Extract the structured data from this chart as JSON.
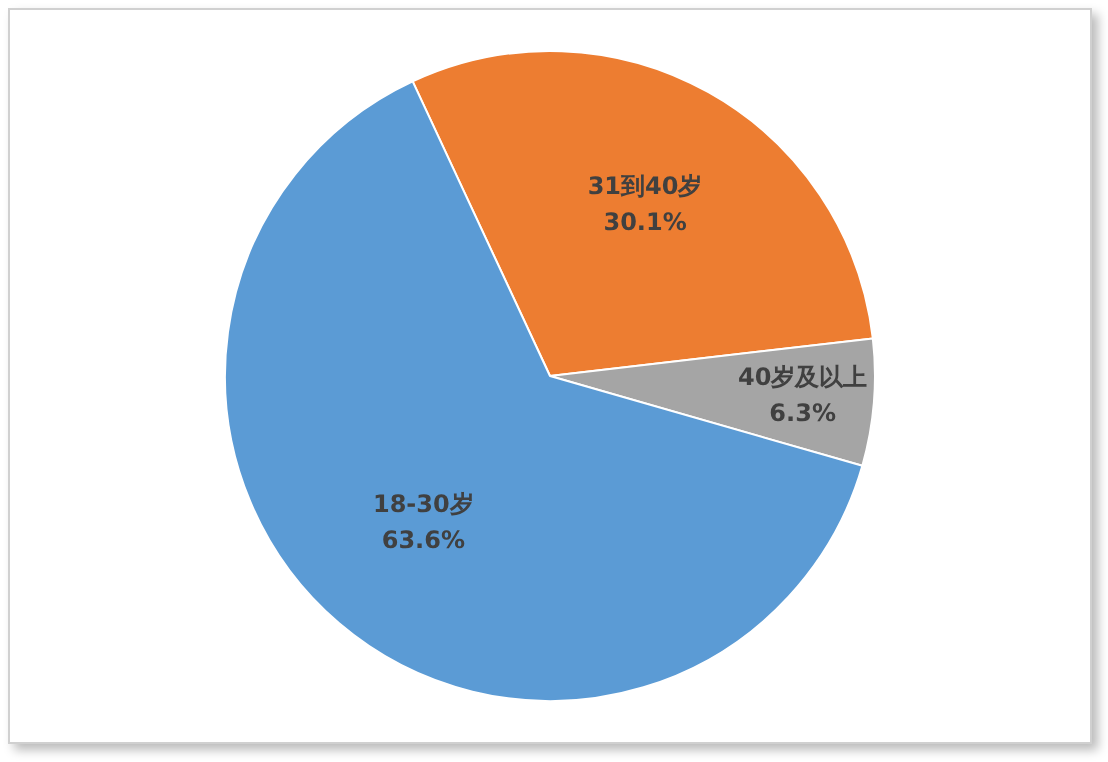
{
  "chart_data": {
    "type": "pie",
    "categories": [
      "31到40岁",
      "40岁及以上",
      "18-30岁"
    ],
    "values": [
      30.1,
      6.3,
      63.6
    ],
    "value_labels": [
      "30.1%",
      "6.3%",
      "63.6%"
    ],
    "colors": [
      "#ed7d31",
      "#a5a5a5",
      "#5b9bd5"
    ],
    "legend": false
  }
}
